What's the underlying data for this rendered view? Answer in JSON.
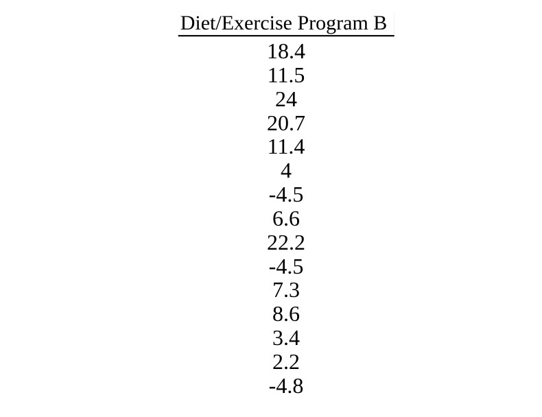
{
  "page": {
    "background_color": "#ffffff",
    "text_color": "#000000"
  },
  "column": {
    "header": "Diet/Exercise Program B",
    "values": [
      "18.4",
      "11.5",
      "24",
      "20.7",
      "11.4",
      "4",
      "-4.5",
      "6.6",
      "22.2",
      "-4.5",
      "7.3",
      "8.6",
      "3.4",
      "2.2",
      "-4.8"
    ]
  },
  "chart_data": {
    "type": "table",
    "title": "Diet/Exercise Program B",
    "columns": [
      "Diet/Exercise Program B"
    ],
    "values": [
      18.4,
      11.5,
      24,
      20.7,
      11.4,
      4,
      -4.5,
      6.6,
      22.2,
      -4.5,
      7.3,
      8.6,
      3.4,
      2.2,
      -4.8
    ]
  }
}
